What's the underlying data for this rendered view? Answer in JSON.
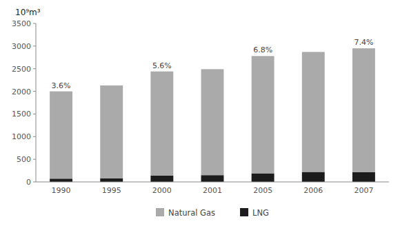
{
  "chart_data": {
    "type": "bar",
    "stacked": true,
    "ylabel": "10⁹m³",
    "categories": [
      "1990",
      "1995",
      "2000",
      "2001",
      "2005",
      "2006",
      "2007"
    ],
    "series": [
      {
        "name": "LNG",
        "color": "#1c1c1c",
        "values": [
          72,
          77,
          137,
          149,
          189,
          220,
          218
        ]
      },
      {
        "name": "Natural Gas",
        "color": "#aaaaaa",
        "values": [
          1928,
          2053,
          2303,
          2341,
          2591,
          2650,
          2732
        ]
      }
    ],
    "annotations": [
      {
        "x": "1990",
        "text": "3.6%"
      },
      {
        "x": "2000",
        "text": "5.6%"
      },
      {
        "x": "2005",
        "text": "6.8%"
      },
      {
        "x": "2007",
        "text": "7.4%"
      }
    ],
    "ylim": [
      0,
      3500
    ],
    "yticks": [
      0,
      500,
      1000,
      1500,
      2000,
      2500,
      3000,
      3500
    ],
    "grid": false,
    "legend": "bottom"
  }
}
